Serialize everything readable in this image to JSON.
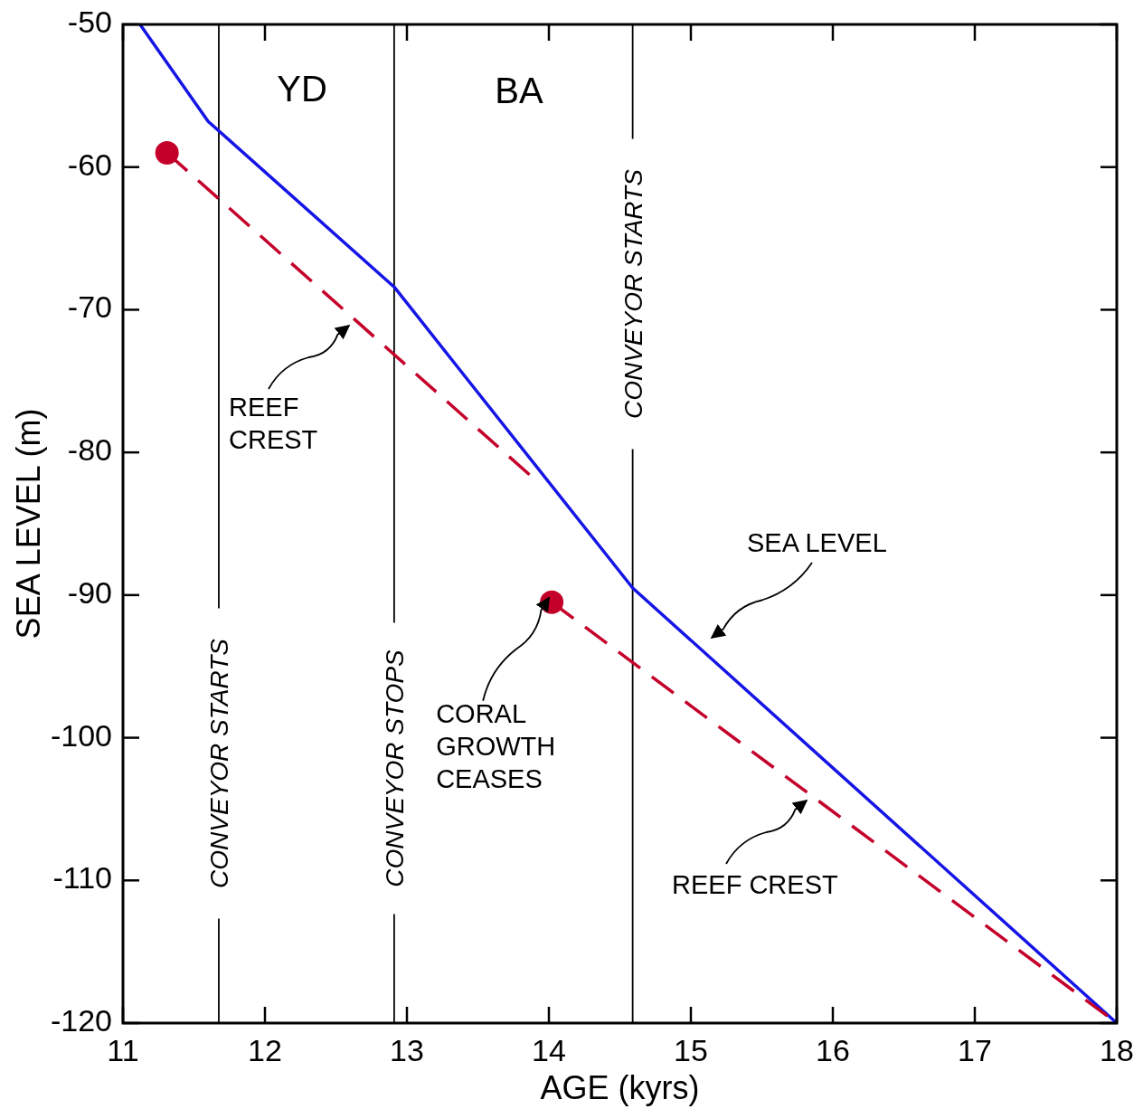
{
  "chart_data": {
    "type": "line",
    "xlabel": "AGE (kyrs)",
    "ylabel": "SEA LEVEL (m)",
    "xlim": [
      11,
      18
    ],
    "ylim": [
      -120,
      -50
    ],
    "xticks": [
      11,
      12,
      13,
      14,
      15,
      16,
      17,
      18
    ],
    "yticks": [
      -50,
      -60,
      -70,
      -80,
      -90,
      -100,
      -110,
      -120
    ],
    "grid": false,
    "series": [
      {
        "color": "#1515e6",
        "line_style": "solid",
        "x": [
          11.12,
          11.6,
          12.91,
          14.59,
          18
        ],
        "values": [
          -50,
          -56.8,
          -68.4,
          -89.5,
          -120
        ]
      },
      {
        "color": "#c4002a",
        "line_style": "dashed",
        "x": [
          11.31,
          13.89
        ],
        "values": [
          -59,
          -81.8
        ]
      },
      {
        "color": "#c4002a",
        "line_style": "dashed",
        "x": [
          14.02,
          18
        ],
        "values": [
          -90.5,
          -120
        ]
      },
      {
        "type": "scatter",
        "color": "#c4002a",
        "marker": "circle",
        "x": [
          11.31,
          14.02
        ],
        "values": [
          -59,
          -90.5
        ]
      }
    ],
    "ref_lines": [
      {
        "axis": "x",
        "value": 11.675,
        "label": "CONVEYOR STARTS",
        "color": "#000000"
      },
      {
        "axis": "x",
        "value": 12.91,
        "label": "CONVEYOR STOPS",
        "color": "#000000"
      },
      {
        "axis": "x",
        "value": 14.59,
        "label": "CONVEYOR STARTS",
        "color": "#000000"
      }
    ],
    "annotations": [
      "YD",
      "BA",
      "REEF\nCREST",
      "SEA LEVEL",
      {
        "text": "CORAL\nGROWTH\nCEASES",
        "x": 14.02,
        "y": -90.5
      },
      "REEF CREST"
    ]
  }
}
